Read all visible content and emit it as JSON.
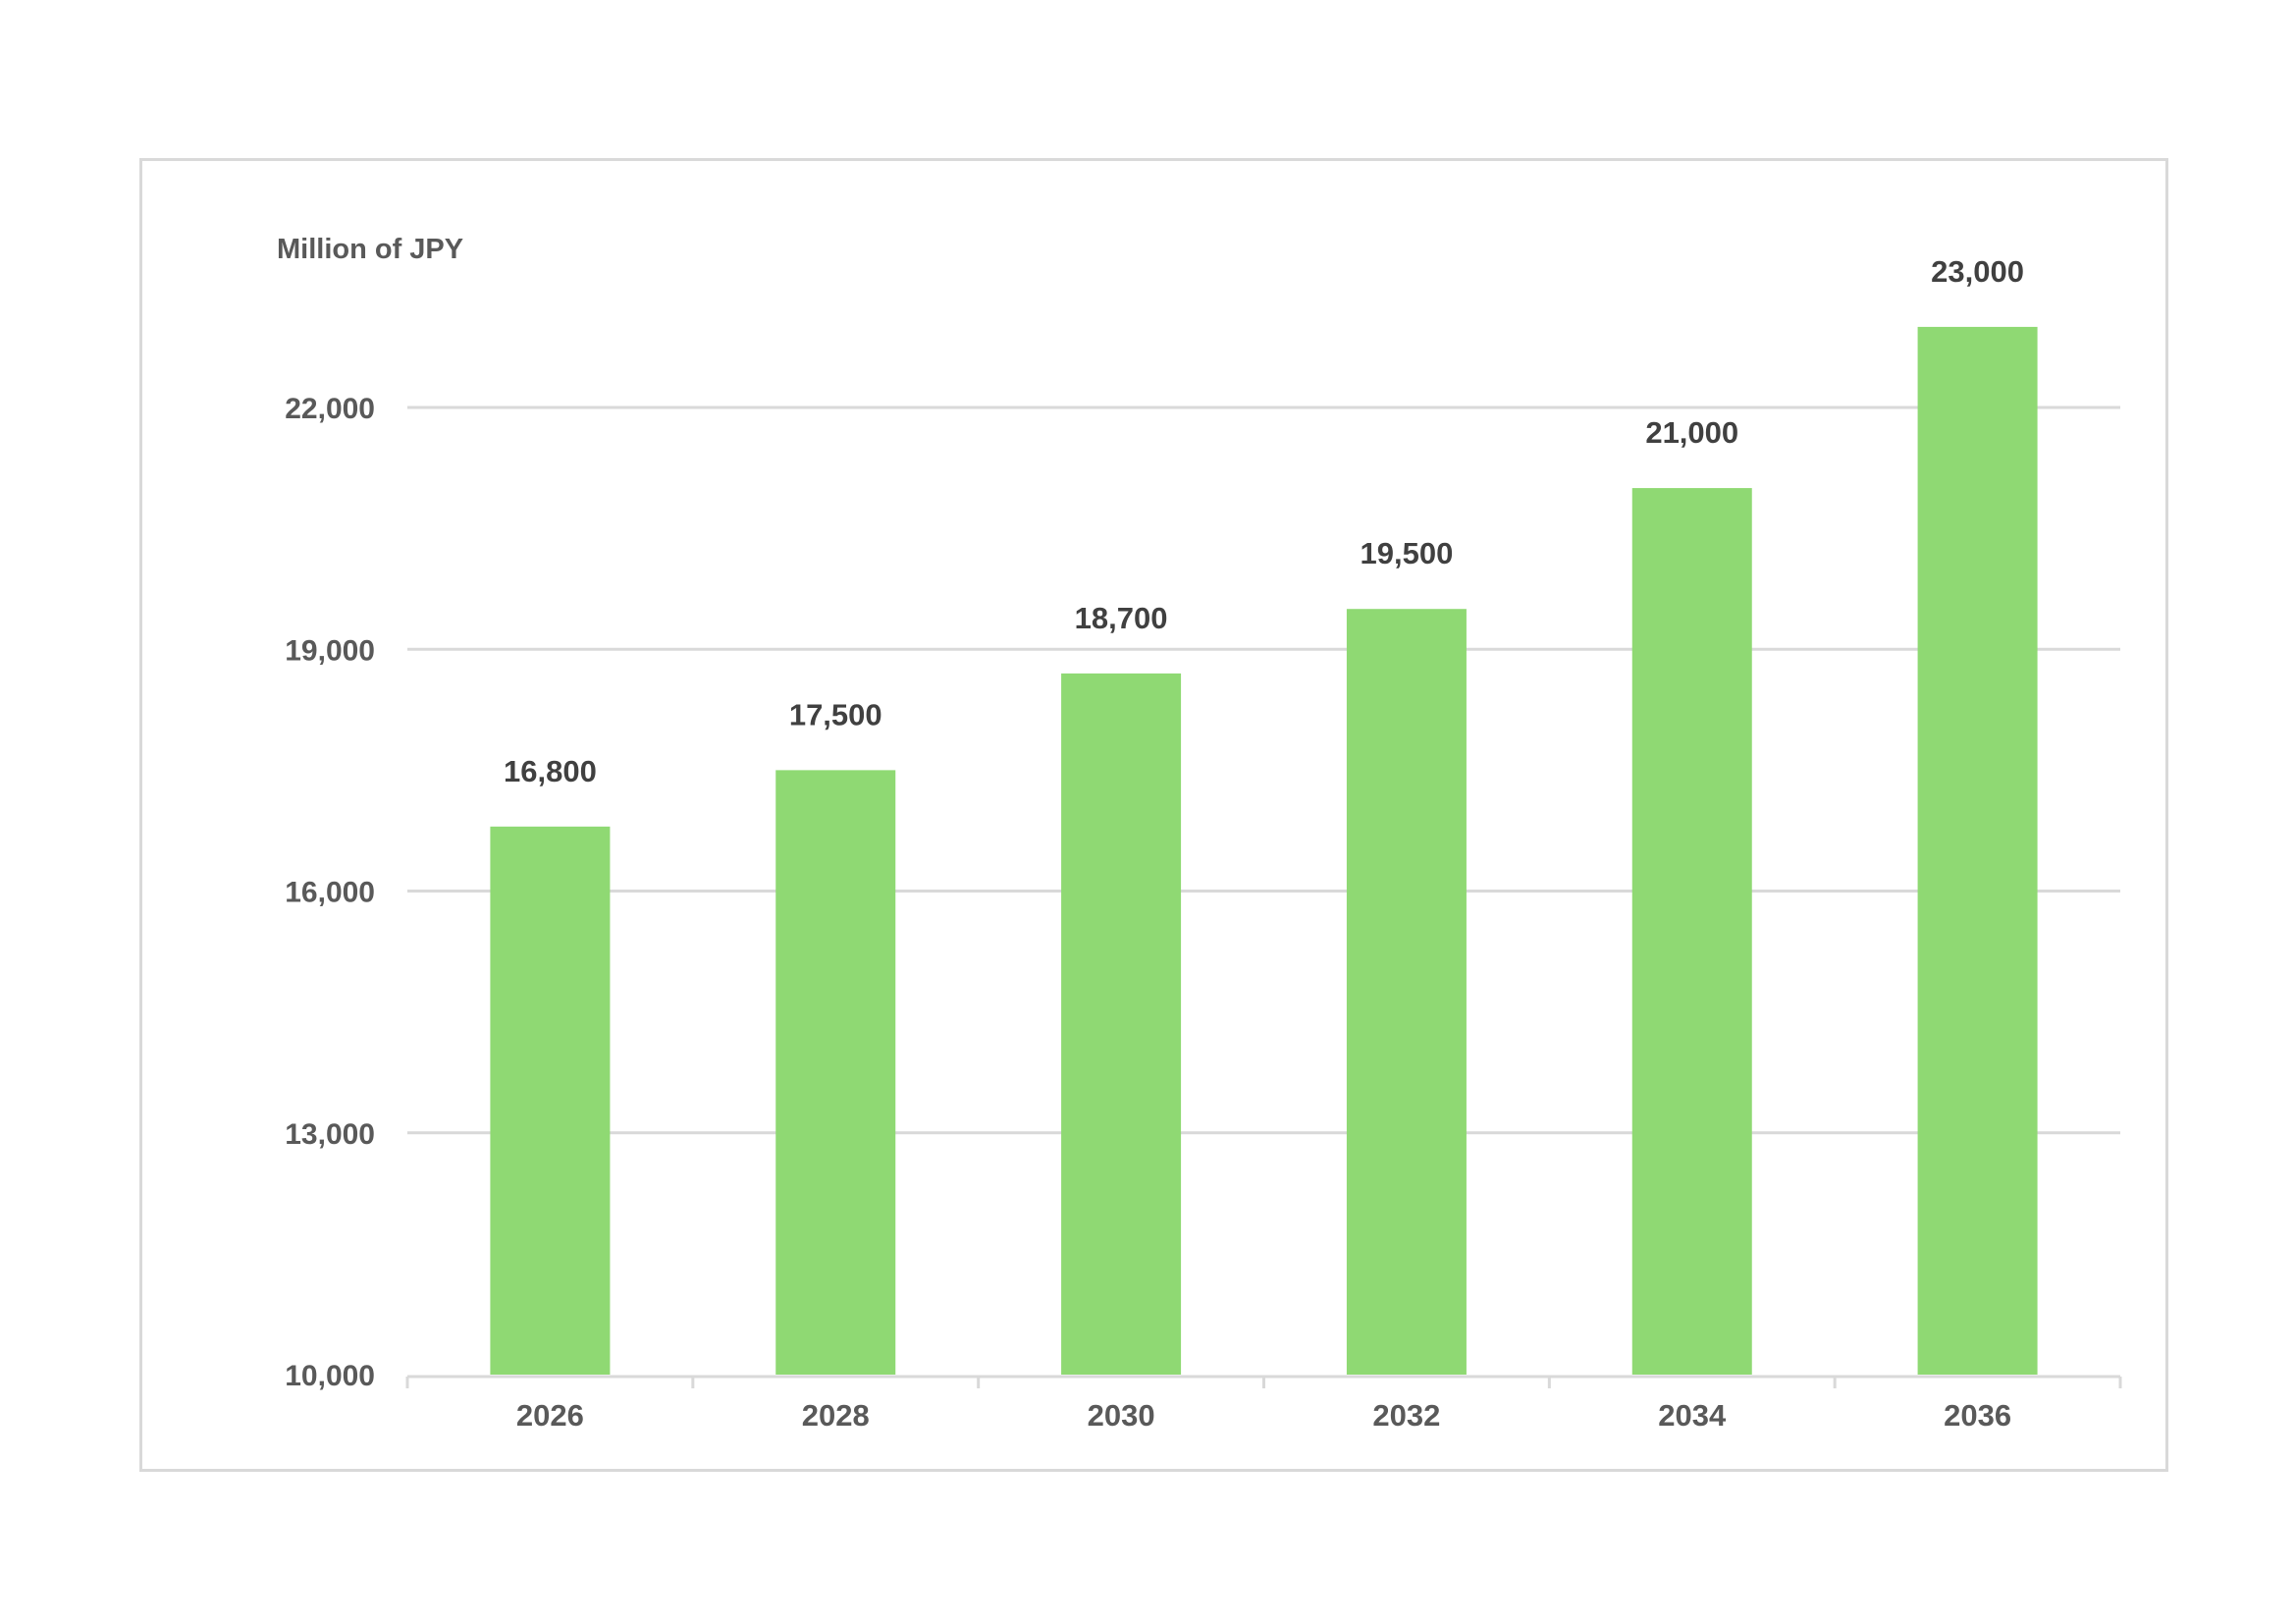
{
  "chart_data": {
    "type": "bar",
    "ylabel": "Million of JPY",
    "categories": [
      "2026",
      "2028",
      "2030",
      "2032",
      "2034",
      "2036"
    ],
    "values": [
      16800,
      17500,
      18700,
      19500,
      21000,
      23000
    ],
    "data_labels": [
      "16,800",
      "17,500",
      "18,700",
      "19,500",
      "21,000",
      "23,000"
    ],
    "ylim": [
      10000,
      22000
    ],
    "yticks": [
      10000,
      13000,
      16000,
      19000,
      22000
    ],
    "ytick_labels": [
      "10,000",
      "13,000",
      "16,000",
      "19,000",
      "22,000"
    ],
    "grid": true,
    "legend": "none",
    "bar_color": "#8fd973",
    "gridline_color": "#d9d9d9",
    "label_color": "#404040"
  }
}
